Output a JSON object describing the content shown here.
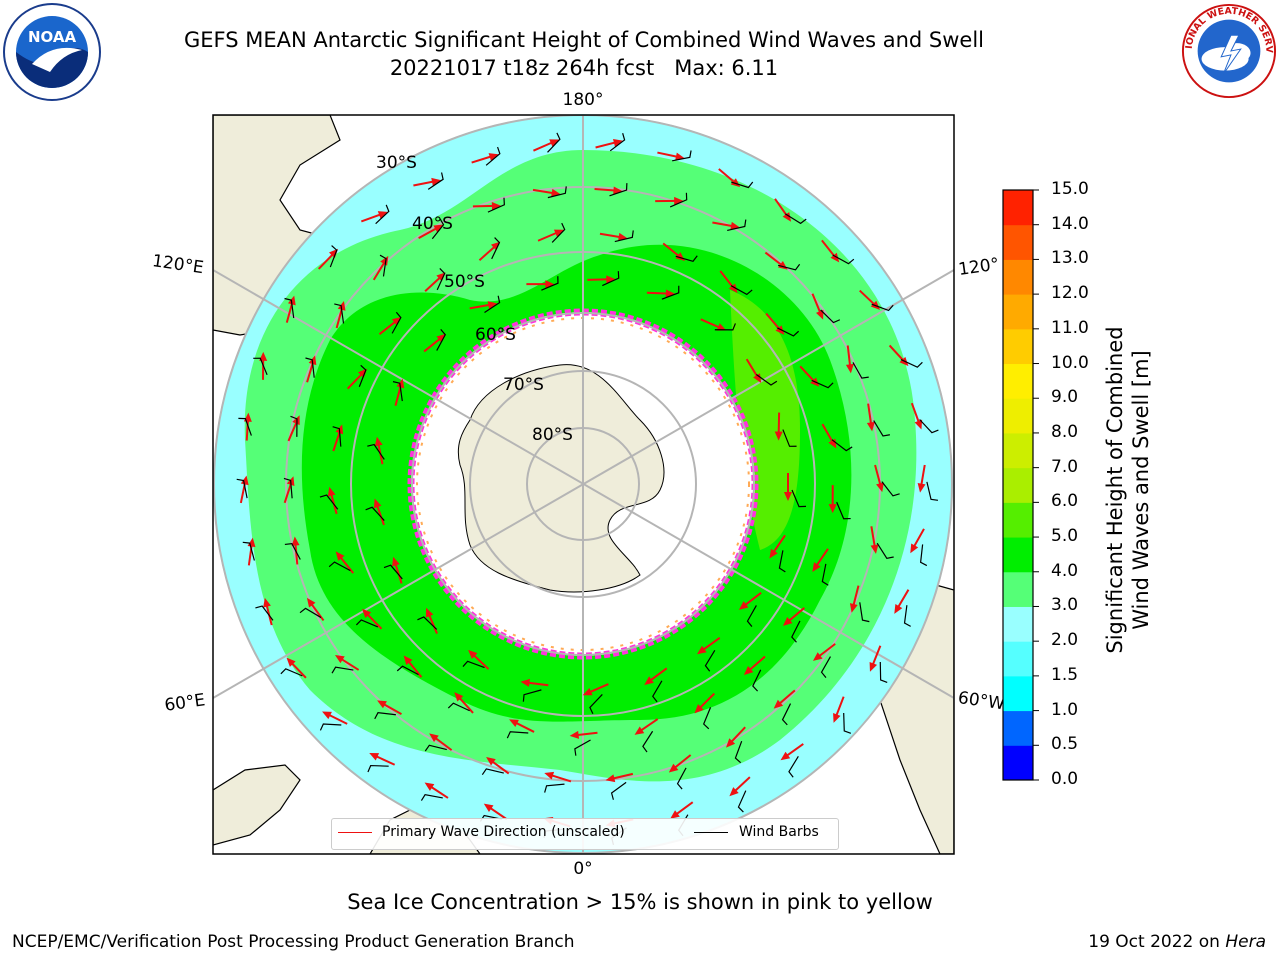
{
  "title": {
    "line1": "GEFS MEAN Antarctic Significant Height of Combined Wind Waves and Swell",
    "line2": "20221017 t18z 264h fcst   Max: 6.11"
  },
  "logos": {
    "left": "NOAA",
    "right": "NATIONAL WEATHER SERVICE"
  },
  "map": {
    "projection": "south-polar-stereographic",
    "lat_rings": [
      "30°S",
      "40°S",
      "50°S",
      "60°S",
      "70°S",
      "80°S"
    ],
    "lon_labels": {
      "top": "180°",
      "bottom": "0°",
      "upper_left": "120°E",
      "upper_right": "120°",
      "lower_left": "60°E",
      "lower_right": "60°W"
    },
    "colors": {
      "land": "#efedda",
      "ocean_outer": "#c7fbff",
      "grid": "#b5b5b5",
      "ice_edge": "#ff33dd",
      "wave_arrow": "#ee1111",
      "wind_barb": "#000000"
    }
  },
  "legend": {
    "primary_wave": "Primary Wave Direction (unscaled)",
    "wind_barbs": "Wind Barbs"
  },
  "colorbar": {
    "title_line1": "Significant Height of Combined",
    "title_line2": "Wind Waves and Swell [m]",
    "ticks": [
      "0.0",
      "0.5",
      "1.0",
      "1.5",
      "2.0",
      "3.0",
      "4.0",
      "5.0",
      "6.0",
      "7.0",
      "8.0",
      "9.0",
      "10.0",
      "11.0",
      "12.0",
      "13.0",
      "14.0",
      "15.0"
    ],
    "colors": [
      "#0000ff",
      "#0066ff",
      "#00ffff",
      "#55ffff",
      "#99ffff",
      "#55ff77",
      "#00ee00",
      "#55ee00",
      "#aaee00",
      "#ccee00",
      "#eeee00",
      "#ffee00",
      "#ffcc00",
      "#ffaa00",
      "#ff8800",
      "#ff5500",
      "#ff2200"
    ]
  },
  "sea_ice_note": "Sea Ice Concentration > 15% is shown in pink to yellow",
  "footer": {
    "left": "NCEP/EMC/Verification Post Processing Product Generation Branch",
    "right_date": "19 Oct 2022 on ",
    "right_machine": "Hera"
  }
}
